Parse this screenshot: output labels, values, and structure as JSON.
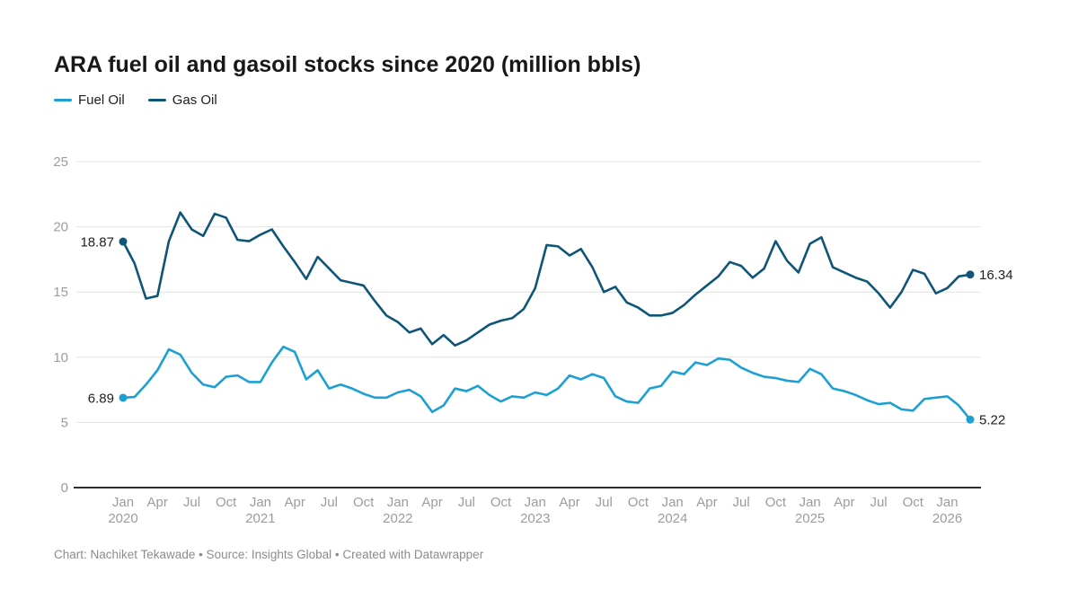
{
  "title": "ARA fuel oil and gasoil stocks since 2020 (million bbls)",
  "footer": "Chart: Nachiket Tekawade • Source: Insights Global • Created with Datawrapper",
  "legend": [
    {
      "label": "Fuel Oil",
      "color": "#1ca0d4"
    },
    {
      "label": "Gas Oil",
      "color": "#0f5578"
    }
  ],
  "colors": {
    "grid": "#e2e2e2",
    "axis": "#2e2e2e",
    "tick_text": "#9c9c9c",
    "label_text": "#1f1f1f"
  },
  "chart_data": {
    "type": "line",
    "title": "ARA fuel oil and gasoil stocks since 2020 (million bbls)",
    "frequency": "monthly",
    "x_start": "Jan 2020",
    "x_end": "Mar 2026",
    "ylim": [
      0,
      25
    ],
    "y_ticks": [
      0,
      5,
      10,
      15,
      20,
      25
    ],
    "grid": "horizontal",
    "legend_position": "top-left",
    "x_ticks": [
      {
        "i": 0,
        "month": "Jan",
        "year": "2020"
      },
      {
        "i": 3,
        "month": "Apr"
      },
      {
        "i": 6,
        "month": "Jul"
      },
      {
        "i": 9,
        "month": "Oct"
      },
      {
        "i": 12,
        "month": "Jan",
        "year": "2021"
      },
      {
        "i": 15,
        "month": "Apr"
      },
      {
        "i": 18,
        "month": "Jul"
      },
      {
        "i": 21,
        "month": "Oct"
      },
      {
        "i": 24,
        "month": "Jan",
        "year": "2022"
      },
      {
        "i": 27,
        "month": "Apr"
      },
      {
        "i": 30,
        "month": "Jul"
      },
      {
        "i": 33,
        "month": "Oct"
      },
      {
        "i": 36,
        "month": "Jan",
        "year": "2023"
      },
      {
        "i": 39,
        "month": "Apr"
      },
      {
        "i": 42,
        "month": "Jul"
      },
      {
        "i": 45,
        "month": "Oct"
      },
      {
        "i": 48,
        "month": "Jan",
        "year": "2024"
      },
      {
        "i": 51,
        "month": "Apr"
      },
      {
        "i": 54,
        "month": "Jul"
      },
      {
        "i": 57,
        "month": "Oct"
      },
      {
        "i": 60,
        "month": "Jan",
        "year": "2025"
      },
      {
        "i": 63,
        "month": "Apr"
      },
      {
        "i": 66,
        "month": "Jul"
      },
      {
        "i": 69,
        "month": "Oct"
      },
      {
        "i": 72,
        "month": "Jan",
        "year": "2026"
      }
    ],
    "series": [
      {
        "name": "Fuel Oil",
        "color": "#1ca0d4",
        "start_label": "6.89",
        "end_label": "5.22",
        "values": [
          6.89,
          6.95,
          7.9,
          9.0,
          10.6,
          10.2,
          8.8,
          7.9,
          7.7,
          8.5,
          8.6,
          8.1,
          8.1,
          9.6,
          10.8,
          10.4,
          8.3,
          9.0,
          7.6,
          7.9,
          7.6,
          7.2,
          6.9,
          6.9,
          7.3,
          7.5,
          7.0,
          5.8,
          6.3,
          7.6,
          7.4,
          7.8,
          7.1,
          6.6,
          7.0,
          6.9,
          7.3,
          7.1,
          7.6,
          8.6,
          8.3,
          8.7,
          8.4,
          7.0,
          6.6,
          6.5,
          7.6,
          7.8,
          8.9,
          8.7,
          9.6,
          9.4,
          9.9,
          9.8,
          9.2,
          8.8,
          8.5,
          8.4,
          8.2,
          8.1,
          9.1,
          8.7,
          7.6,
          7.4,
          7.1,
          6.7,
          6.4,
          6.5,
          6.0,
          5.9,
          6.8,
          6.9,
          7.0,
          6.3,
          5.22
        ]
      },
      {
        "name": "Gas Oil",
        "color": "#0f5578",
        "start_label": "18.87",
        "end_label": "16.34",
        "values": [
          18.87,
          17.2,
          14.5,
          14.7,
          18.9,
          21.1,
          19.8,
          19.3,
          21.0,
          20.7,
          19.0,
          18.9,
          19.4,
          19.8,
          18.5,
          17.3,
          16.0,
          17.7,
          16.8,
          15.9,
          15.7,
          15.5,
          14.3,
          13.2,
          12.7,
          11.9,
          12.2,
          11.0,
          11.7,
          10.9,
          11.3,
          11.9,
          12.5,
          12.8,
          13.0,
          13.7,
          15.3,
          18.6,
          18.5,
          17.8,
          18.3,
          16.9,
          15.0,
          15.4,
          14.2,
          13.8,
          13.2,
          13.2,
          13.4,
          14.0,
          14.8,
          15.5,
          16.2,
          17.3,
          17.0,
          16.1,
          16.8,
          18.9,
          17.4,
          16.5,
          18.7,
          19.2,
          16.9,
          16.5,
          16.1,
          15.8,
          14.9,
          13.8,
          15.0,
          16.7,
          16.4,
          14.9,
          15.3,
          16.2,
          16.34
        ]
      }
    ]
  }
}
